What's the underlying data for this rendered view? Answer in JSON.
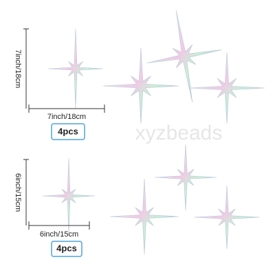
{
  "watermark": "xyzbeads",
  "sets": [
    {
      "height_label": "7inch/18cm",
      "width_label": "7inch/18cm",
      "quantity": "4pcs"
    },
    {
      "height_label": "6inch/15cm",
      "width_label": "6inch/15cm",
      "quantity": "4pcs"
    }
  ]
}
